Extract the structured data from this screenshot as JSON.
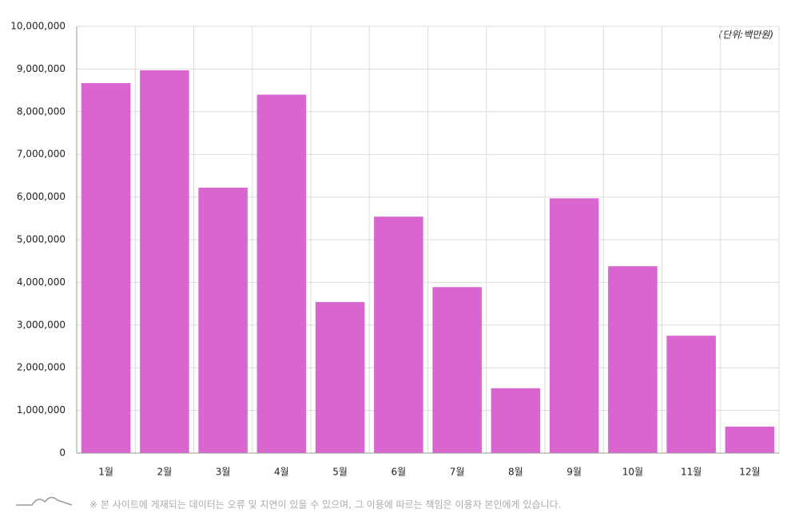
{
  "chart_data": {
    "type": "bar",
    "unit": "(단위:백만원)",
    "footnote": "※ 본 사이트에 게재되는 데이터는 오류 및 지연이 있을 수 있으며, 그 이용에 따르는 책임은 이용자 본인에게 있습니다.",
    "categories": [
      "1월",
      "2월",
      "3월",
      "4월",
      "5월",
      "6월",
      "7월",
      "8월",
      "9월",
      "10월",
      "11월",
      "12월"
    ],
    "values": [
      8670000,
      8970000,
      6220000,
      8400000,
      3540000,
      5540000,
      3890000,
      1520000,
      5970000,
      4380000,
      2750000,
      620000
    ],
    "color": "#d966cf",
    "ylim": [
      0,
      10000000
    ],
    "yticks": [
      0,
      {
        "value": 1000000,
        "label": "1,000,000"
      },
      {
        "value": 2000000,
        "label": "2,000,000"
      },
      {
        "value": 3000000,
        "label": "3,000,000"
      },
      {
        "value": 4000000,
        "label": "4,000,000"
      },
      {
        "value": 5000000,
        "label": "5,000,000"
      },
      {
        "value": 6000000,
        "label": "6,000,000"
      },
      {
        "value": 7000000,
        "label": "7,000,000"
      },
      {
        "value": 8000000,
        "label": "8,000,000"
      },
      {
        "value": 9000000,
        "label": "9,000,000"
      },
      {
        "value": 10000000,
        "label": "10,000,000"
      }
    ],
    "grid": true
  }
}
